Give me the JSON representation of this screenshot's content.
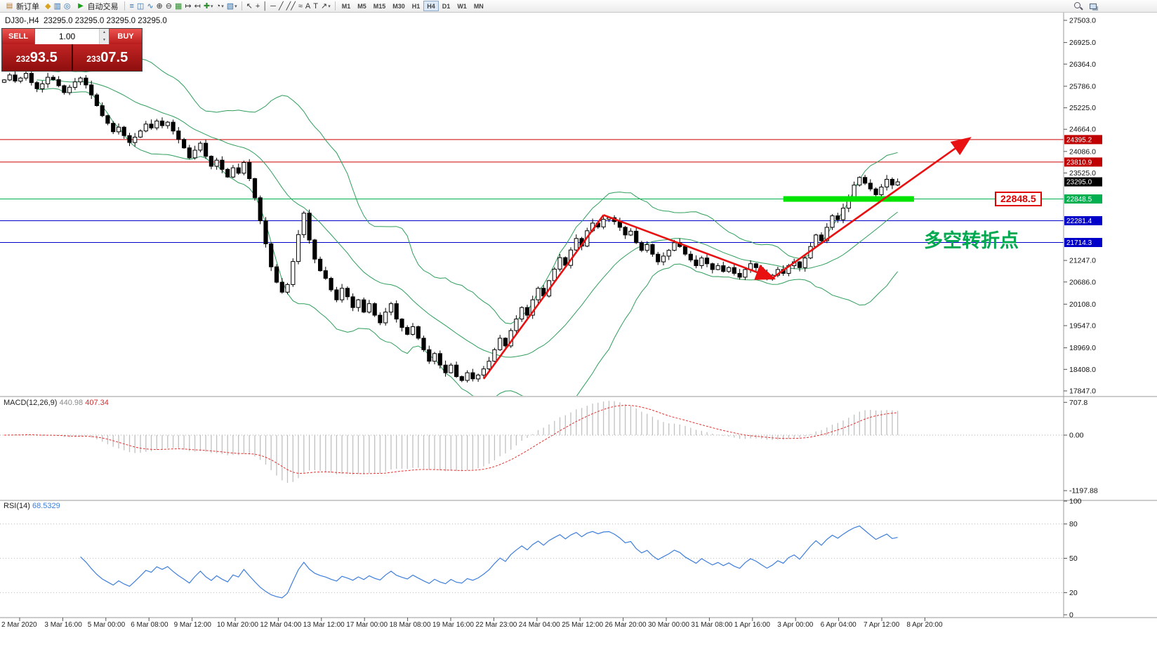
{
  "toolbar": {
    "new_order": {
      "label": "新订单",
      "glyph": "▤"
    },
    "autotrading": {
      "label": "自动交易",
      "glyph": "▶"
    },
    "left_icons": [
      {
        "name": "metaeditor-icon",
        "glyph": "◆",
        "color": "#d9a520"
      },
      {
        "name": "market-watch-icon",
        "glyph": "▥",
        "color": "#2f6fae"
      },
      {
        "name": "navigator-icon",
        "glyph": "◎",
        "color": "#2f6fae"
      }
    ],
    "chart_icons": [
      {
        "name": "bar-chart-icon",
        "glyph": "≡",
        "color": "#2f6fae"
      },
      {
        "name": "candlestick-chart-icon",
        "glyph": "◫",
        "color": "#2f6fae"
      },
      {
        "name": "line-chart-icon",
        "glyph": "∿",
        "color": "#2f6fae"
      },
      {
        "name": "zoom-in-icon",
        "glyph": "⊕",
        "color": "#333333"
      },
      {
        "name": "zoom-out-icon",
        "glyph": "⊖",
        "color": "#333333"
      },
      {
        "name": "tile-windows-icon",
        "glyph": "▦",
        "color": "#2f8f2f"
      },
      {
        "name": "auto-scroll-icon",
        "glyph": "↦",
        "color": "#333333"
      },
      {
        "name": "chart-shift-icon",
        "glyph": "↤",
        "color": "#333333"
      },
      {
        "name": "indicators-icon",
        "glyph": "✚",
        "color": "#2f8f2f",
        "dropdown": true
      },
      {
        "name": "periods-icon",
        "glyph": "◔",
        "color": "#333333",
        "dropdown": true
      },
      {
        "name": "templates-icon",
        "glyph": "▧",
        "color": "#2f6fae",
        "dropdown": true
      }
    ],
    "tool_icons": [
      {
        "name": "cursor-icon",
        "glyph": "↖",
        "color": "#333333"
      },
      {
        "name": "crosshair-icon",
        "glyph": "+",
        "color": "#333333"
      },
      {
        "name": "vertical-line-icon",
        "glyph": "│",
        "color": "#333333"
      },
      {
        "name": "horizontal-line-icon",
        "glyph": "─",
        "color": "#333333"
      },
      {
        "name": "trendline-icon",
        "glyph": "╱",
        "color": "#333333"
      },
      {
        "name": "channel-icon",
        "glyph": "╱╱",
        "color": "#333333"
      },
      {
        "name": "fibonacci-icon",
        "glyph": "≈",
        "color": "#333333"
      },
      {
        "name": "text-icon",
        "glyph": "A",
        "color": "#333333"
      },
      {
        "name": "label-icon",
        "glyph": "T",
        "color": "#333333"
      },
      {
        "name": "arrows-icon",
        "glyph": "↗",
        "color": "#333333",
        "dropdown": true
      }
    ],
    "timeframes": [
      "M1",
      "M5",
      "M15",
      "M30",
      "H1",
      "H4",
      "D1",
      "W1",
      "MN"
    ],
    "active_timeframe": "H4"
  },
  "chart": {
    "symbol_period": "DJ30-,H4",
    "ohlc_text": "23295.0 23295.0 23295.0 23295.0"
  },
  "trade_panel": {
    "sell_label": "SELL",
    "buy_label": "BUY",
    "volume": "1.00",
    "sell_price": "23293.5",
    "buy_price": "23307.5",
    "spin_up": "▲",
    "spin_down": "▼"
  },
  "annotations": {
    "level_box_text": "22848.5",
    "turning_point_text": "多空转折点"
  },
  "price_axis": {
    "gridline_labels": [
      "27503.0",
      "26925.0",
      "26364.0",
      "25786.0",
      "25225.0",
      "24664.0",
      "24086.0",
      "23525.0",
      "21247.0",
      "20686.0",
      "20108.0",
      "19547.0",
      "18969.0",
      "18408.0",
      "17847.0"
    ],
    "line_labels": [
      {
        "value": "24395.2",
        "color": "#c00000"
      },
      {
        "value": "23810.9",
        "color": "#c00000"
      },
      {
        "value": "23295.0",
        "color": "#000000"
      },
      {
        "value": "22848.5",
        "color": "#00b050"
      },
      {
        "value": "22281.4",
        "color": "#0000c8"
      },
      {
        "value": "21714.3",
        "color": "#0000c8"
      }
    ]
  },
  "time_axis": {
    "labels": [
      "2 Mar 2020",
      "3 Mar 16:00",
      "5 Mar 00:00",
      "6 Mar 08:00",
      "9 Mar 12:00",
      "10 Mar 20:00",
      "12 Mar 04:00",
      "13 Mar 12:00",
      "17 Mar 00:00",
      "18 Mar 08:00",
      "19 Mar 16:00",
      "22 Mar 23:00",
      "24 Mar 04:00",
      "25 Mar 12:00",
      "26 Mar 20:00",
      "30 Mar 00:00",
      "31 Mar 08:00",
      "1 Apr 16:00",
      "3 Apr 00:00",
      "6 Apr 04:00",
      "7 Apr 12:00",
      "8 Apr 20:00"
    ]
  },
  "indicators": {
    "macd": {
      "name": "MACD(12,26,9)",
      "value_main": "440.98",
      "value_signal": "407.34",
      "axis_labels": [
        "707.8",
        "0.00",
        "-1197.88"
      ]
    },
    "rsi": {
      "name": "RSI(14)",
      "value": "68.5329",
      "axis_labels": [
        "100",
        "80",
        "50",
        "20",
        "0"
      ],
      "levels": [
        80,
        50,
        20
      ]
    }
  },
  "colors": {
    "arrow": "#e81010",
    "bollinger": "#2e9e5b",
    "highlight": "#00e400",
    "macd_hist": "#c0c0c0",
    "macd_signal": "#e03030",
    "rsi_line": "#3d7edb"
  },
  "chart_data": {
    "type": "candlestick",
    "symbol": "DJ30-",
    "period": "H4",
    "y_range": [
      17847.0,
      27503.0
    ],
    "bollinger": {
      "period": 20,
      "deviation": 2
    },
    "closes": [
      25950,
      26080,
      25920,
      26000,
      26120,
      25880,
      25720,
      25850,
      26020,
      25960,
      25800,
      25620,
      25760,
      25900,
      26000,
      25820,
      25560,
      25280,
      25020,
      24820,
      24600,
      24720,
      24500,
      24320,
      24460,
      24620,
      24800,
      24700,
      24880,
      24760,
      24850,
      24620,
      24400,
      24180,
      23920,
      24120,
      24300,
      23960,
      23700,
      23860,
      23620,
      23420,
      23660,
      23520,
      23800,
      23380,
      22880,
      22280,
      21680,
      21080,
      20680,
      20420,
      20620,
      21220,
      21920,
      22480,
      21780,
      21280,
      20980,
      20780,
      20480,
      20220,
      20520,
      20300,
      20020,
      20220,
      19900,
      20120,
      19820,
      19620,
      19900,
      20120,
      19720,
      19500,
      19320,
      19520,
      19220,
      18920,
      18620,
      18820,
      18520,
      18320,
      18520,
      18220,
      18120,
      18320,
      18160,
      18260,
      18420,
      18620,
      18920,
      19220,
      19020,
      19420,
      19720,
      20020,
      19820,
      20220,
      20520,
      20320,
      20720,
      21020,
      21320,
      21120,
      21520,
      21820,
      21620,
      22020,
      22220,
      22120,
      22320,
      22360,
      22260,
      22110,
      21910,
      22010,
      21710,
      21510,
      21660,
      21410,
      21210,
      21360,
      21510,
      21710,
      21610,
      21410,
      21260,
      21110,
      21310,
      21160,
      21010,
      21110,
      20960,
      21060,
      20910,
      20810,
      21010,
      21160,
      21060,
      20910,
      20760,
      20860,
      21010,
      20910,
      21110,
      21210,
      21060,
      21310,
      21610,
      21910,
      21760,
      22110,
      22410,
      22310,
      22610,
      22910,
      23210,
      23410,
      23260,
      23110,
      22960,
      23160,
      23360,
      23210,
      23295
    ],
    "price_lines": [
      {
        "value": 24395.2,
        "color": "#cc0000"
      },
      {
        "value": 23810.9,
        "color": "#cc0000"
      },
      {
        "value": 22848.5,
        "color": "#00b050"
      },
      {
        "value": 22281.4,
        "color": "#0000c8"
      },
      {
        "value": 21714.3,
        "color": "#0000c8"
      }
    ],
    "highlight_bar": {
      "start_index": 143,
      "end_index": 167,
      "price": 22848.5
    },
    "trend_arrows": [
      {
        "from": [
          88,
          18160
        ],
        "to": [
          110,
          22430
        ],
        "head": false
      },
      {
        "from": [
          110,
          22430
        ],
        "to": [
          141,
          20790
        ],
        "head": true
      },
      {
        "from": [
          141,
          20790
        ],
        "to": [
          177,
          24410
        ],
        "head": true
      }
    ]
  }
}
